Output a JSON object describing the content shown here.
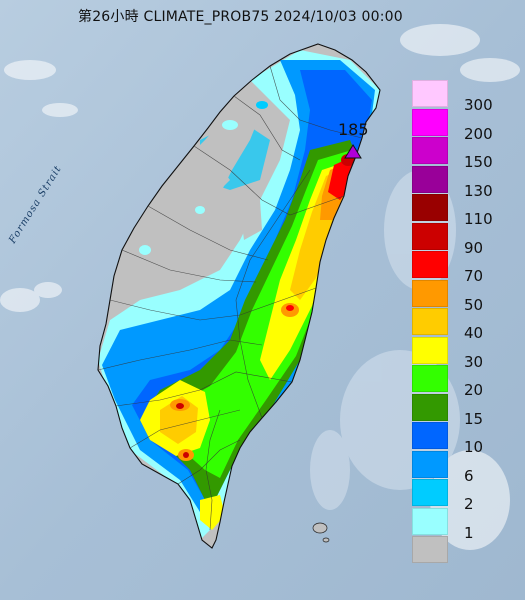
{
  "title": "第26小時  CLIMATE_PROB75 2024/10/03 00:00",
  "sea_label": "Formosa Strait",
  "peak": {
    "value": "185",
    "marker_color": "#b000d8",
    "marker_icon": "triangle-marker-icon"
  },
  "legend": [
    {
      "label": "300",
      "color": "#ffc8ff"
    },
    {
      "label": "200",
      "color": "#ff00ff"
    },
    {
      "label": "150",
      "color": "#cc00cc"
    },
    {
      "label": "130",
      "color": "#990099"
    },
    {
      "label": "110",
      "color": "#990000"
    },
    {
      "label": "90",
      "color": "#cc0000"
    },
    {
      "label": "70",
      "color": "#ff0000"
    },
    {
      "label": "50",
      "color": "#ff9900"
    },
    {
      "label": "40",
      "color": "#ffcc00"
    },
    {
      "label": "30",
      "color": "#ffff00"
    },
    {
      "label": "20",
      "color": "#33ff00"
    },
    {
      "label": "15",
      "color": "#339900"
    },
    {
      "label": "10",
      "color": "#0066ff"
    },
    {
      "label": "6",
      "color": "#0099ff"
    },
    {
      "label": "2",
      "color": "#00ccff"
    },
    {
      "label": "1",
      "color": "#99ffff"
    },
    {
      "label": "",
      "color": "#c0c0c0"
    }
  ],
  "colors": {
    "sea": "#a9c2d8",
    "land_dry": "#c0c0c0"
  }
}
